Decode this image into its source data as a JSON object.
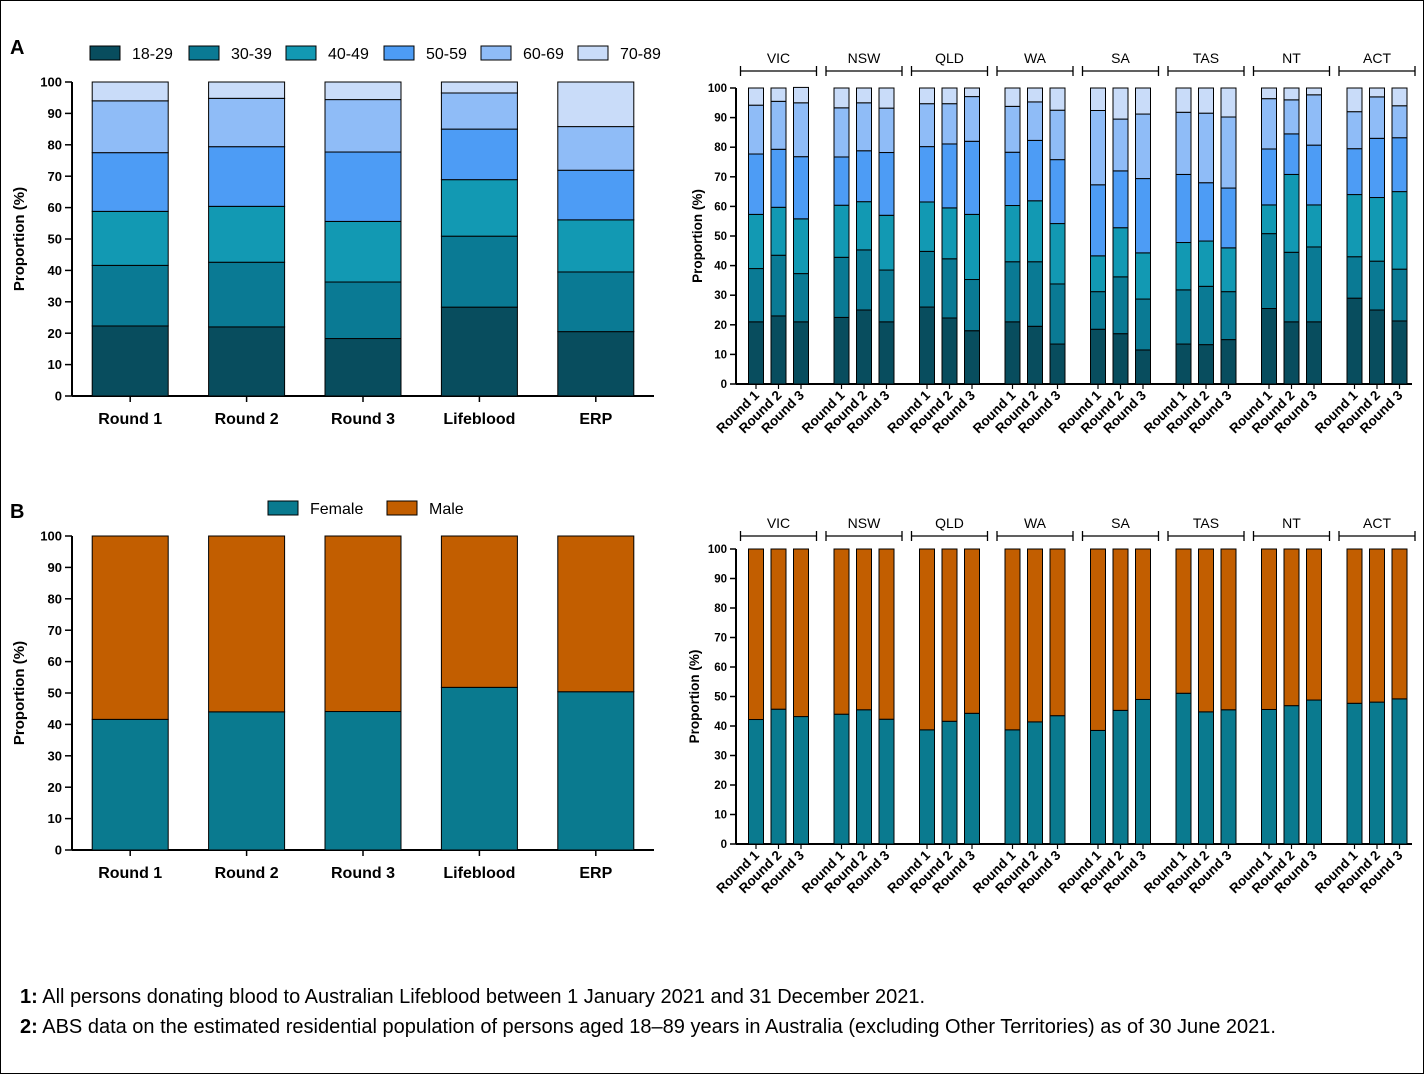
{
  "panels": {
    "a_label": "A",
    "b_label": "B"
  },
  "y_axis_label": "Proportion (%)",
  "colors": {
    "age": [
      "#084d5e",
      "#0a7a94",
      "#1299b3",
      "#4d9cf5",
      "#8fbcf7",
      "#c9dcf9"
    ],
    "sex": [
      "#0a7a8f",
      "#c25e00"
    ]
  },
  "legends": {
    "age": [
      "18-29",
      "30-39",
      "40-49",
      "50-59",
      "60-69",
      "70-89"
    ],
    "sex": [
      "Female",
      "Male"
    ]
  },
  "chart_data": [
    {
      "id": "age-overall",
      "type": "bar",
      "stacked": true,
      "categories": [
        "Round 1",
        "Round 2",
        "Round 3",
        "Lifeblood",
        "ERP"
      ],
      "ylim": [
        0,
        100
      ],
      "yticks": [
        0,
        10,
        20,
        30,
        40,
        50,
        60,
        70,
        80,
        90,
        100
      ],
      "ylabel": "Proportion (%)",
      "legend_position": "top",
      "series": [
        {
          "name": "18-29",
          "values": [
            22.3,
            22.0,
            18.3,
            28.3,
            20.5
          ]
        },
        {
          "name": "30-39",
          "values": [
            19.3,
            20.6,
            18.0,
            22.6,
            19.0
          ]
        },
        {
          "name": "40-49",
          "values": [
            17.2,
            17.8,
            19.3,
            18.0,
            16.6
          ]
        },
        {
          "name": "50-59",
          "values": [
            18.7,
            19.0,
            22.1,
            16.1,
            15.8
          ]
        },
        {
          "name": "60-69",
          "values": [
            16.5,
            15.4,
            16.7,
            11.5,
            13.9
          ]
        },
        {
          "name": "70-89",
          "values": [
            6.0,
            5.2,
            5.6,
            3.5,
            14.2
          ]
        }
      ]
    },
    {
      "id": "age-state",
      "type": "bar",
      "stacked": true,
      "groups": [
        "VIC",
        "NSW",
        "QLD",
        "WA",
        "SA",
        "TAS",
        "NT",
        "ACT"
      ],
      "categories": [
        "Round 1",
        "Round 2",
        "Round 3"
      ],
      "ylim": [
        0,
        100
      ],
      "yticks": [
        0,
        10,
        20,
        30,
        40,
        50,
        60,
        70,
        80,
        90,
        100
      ],
      "ylabel": "Proportion (%)",
      "series": [
        {
          "name": "18-29",
          "values": [
            [
              21,
              23,
              21
            ],
            [
              22.5,
              25,
              21
            ],
            [
              26,
              22.3,
              18
            ],
            [
              21,
              19.5,
              13.5
            ],
            [
              18.5,
              17,
              11.5
            ],
            [
              13.5,
              13.3,
              15
            ],
            [
              25.5,
              21,
              21
            ],
            [
              29,
              25,
              21.3
            ]
          ]
        },
        {
          "name": "30-39",
          "values": [
            [
              18,
              20.5,
              16.3
            ],
            [
              20.3,
              20.3,
              17.5
            ],
            [
              18.8,
              20,
              17.3
            ],
            [
              20.3,
              21.8,
              20.3
            ],
            [
              12.7,
              19.2,
              17.2
            ],
            [
              18.3,
              19.7,
              16.2
            ],
            [
              25.3,
              23.5,
              25.3
            ],
            [
              14,
              16.5,
              17.5
            ]
          ]
        },
        {
          "name": "40-49",
          "values": [
            [
              18.3,
              16.2,
              18.5
            ],
            [
              17.6,
              16.3,
              18.5
            ],
            [
              16.7,
              17.2,
              22
            ],
            [
              19,
              20.6,
              20.4
            ],
            [
              12.1,
              16.6,
              15.6
            ],
            [
              16,
              15.3,
              14.8
            ],
            [
              9.7,
              26.3,
              14.2
            ],
            [
              21,
              21.5,
              26.2
            ]
          ]
        },
        {
          "name": "50-59",
          "values": [
            [
              20.4,
              19.6,
              21
            ],
            [
              16.3,
              17.2,
              21.2
            ],
            [
              18.7,
              21.6,
              24.7
            ],
            [
              18,
              20.4,
              21.6
            ],
            [
              24,
              19.2,
              25.1
            ],
            [
              23,
              19.7,
              20.2
            ],
            [
              18.9,
              13.7,
              20.2
            ],
            [
              15.5,
              20,
              18.2
            ]
          ]
        },
        {
          "name": "60-69",
          "values": [
            [
              16.5,
              16.2,
              18.2
            ],
            [
              16.6,
              16.2,
              15
            ],
            [
              14.5,
              13.6,
              15.1
            ],
            [
              15.5,
              13,
              16.7
            ],
            [
              25.1,
              17.5,
              21.8
            ],
            [
              21,
              23.5,
              24
            ],
            [
              17,
              11.5,
              17
            ],
            [
              12.5,
              14,
              10.8
            ]
          ]
        },
        {
          "name": "70-89",
          "values": [
            [
              5.8,
              4.5,
              5.2
            ],
            [
              6.7,
              5,
              6.8
            ],
            [
              5.3,
              5.3,
              2.9
            ],
            [
              6.2,
              4.7,
              7.5
            ],
            [
              7.6,
              10.5,
              8.8
            ],
            [
              8.2,
              8.5,
              9.8
            ],
            [
              3.6,
              4,
              2.3
            ],
            [
              8,
              3,
              6
            ]
          ]
        }
      ]
    },
    {
      "id": "sex-overall",
      "type": "bar",
      "stacked": true,
      "categories": [
        "Round 1",
        "Round 2",
        "Round 3",
        "Lifeblood",
        "ERP"
      ],
      "ylim": [
        0,
        100
      ],
      "yticks": [
        0,
        10,
        20,
        30,
        40,
        50,
        60,
        70,
        80,
        90,
        100
      ],
      "ylabel": "Proportion (%)",
      "legend_position": "top",
      "series": [
        {
          "name": "Female",
          "values": [
            41.6,
            44.0,
            44.1,
            51.8,
            50.4
          ]
        },
        {
          "name": "Male",
          "values": [
            58.4,
            56.0,
            55.9,
            48.2,
            49.6
          ]
        }
      ]
    },
    {
      "id": "sex-state",
      "type": "bar",
      "stacked": true,
      "groups": [
        "VIC",
        "NSW",
        "QLD",
        "WA",
        "SA",
        "TAS",
        "NT",
        "ACT"
      ],
      "categories": [
        "Round 1",
        "Round 2",
        "Round 3"
      ],
      "ylim": [
        0,
        100
      ],
      "yticks": [
        0,
        10,
        20,
        30,
        40,
        50,
        60,
        70,
        80,
        90,
        100
      ],
      "ylabel": "Proportion (%)",
      "series": [
        {
          "name": "Female",
          "values": [
            [
              42.2,
              45.7,
              43.2
            ],
            [
              44.0,
              45.5,
              42.3
            ],
            [
              38.7,
              41.6,
              44.3
            ],
            [
              38.7,
              41.4,
              43.5
            ],
            [
              38.5,
              45.3,
              49.0
            ],
            [
              51.1,
              44.8,
              45.5
            ],
            [
              45.6,
              46.9,
              48.8
            ],
            [
              47.7,
              48.1,
              49.2
            ]
          ]
        },
        {
          "name": "Male",
          "values": [
            [
              57.8,
              54.3,
              56.8
            ],
            [
              56.0,
              54.5,
              57.7
            ],
            [
              61.3,
              58.4,
              55.7
            ],
            [
              61.3,
              58.6,
              56.5
            ],
            [
              61.5,
              54.7,
              51.0
            ],
            [
              48.9,
              55.2,
              54.5
            ],
            [
              54.4,
              53.1,
              51.2
            ],
            [
              52.3,
              51.9,
              50.8
            ]
          ]
        }
      ]
    }
  ],
  "footnotes": [
    {
      "marker": "1:",
      "text": " All persons donating blood to Australian Lifeblood between 1 January 2021 and 31 December 2021."
    },
    {
      "marker": "2:",
      "text": " ABS data on the estimated residential population of persons aged 18–89 years in Australia (excluding Other Territories) as of 30 June 2021."
    }
  ]
}
